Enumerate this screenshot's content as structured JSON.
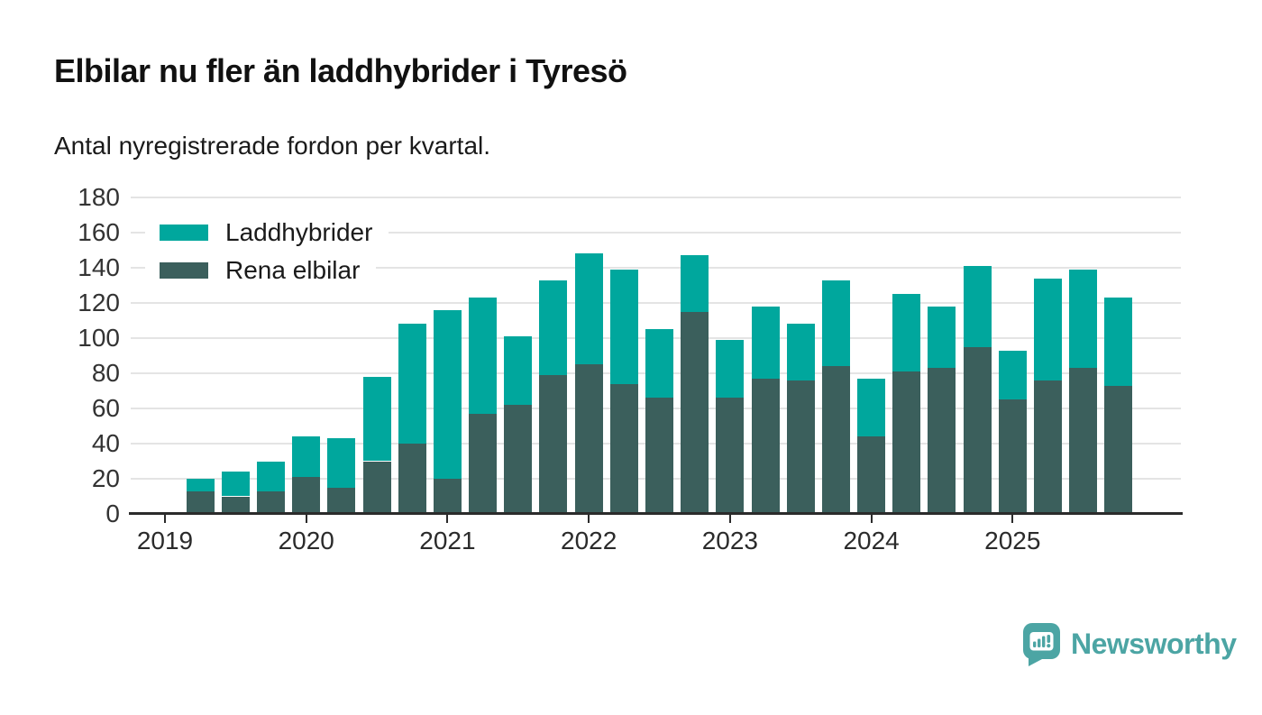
{
  "header": {
    "title": "Elbilar nu fler än laddhybrider i Tyresö",
    "subtitle": "Antal nyregistrerade fordon per kvartal."
  },
  "colors": {
    "laddhybrider": "#00a79d",
    "rena_elbilar": "#3b5f5c",
    "brand": "#4ca5a4",
    "axis": "#2b2b2b",
    "grid": "#e4e4e4",
    "title_text": "#111111"
  },
  "legend": {
    "items": [
      {
        "label": "Laddhybrider",
        "color": "#00a79d"
      },
      {
        "label": "Rena elbilar",
        "color": "#3b5f5c"
      }
    ]
  },
  "chart_data": {
    "type": "bar",
    "stacked": true,
    "title": "Elbilar nu fler än laddhybrider i Tyresö",
    "subtitle": "Antal nyregistrerade fordon per kvartal.",
    "x": [
      "2019 Q2",
      "2019 Q3",
      "2019 Q4",
      "2020 Q1",
      "2020 Q2",
      "2020 Q3",
      "2020 Q4",
      "2021 Q1",
      "2021 Q2",
      "2021 Q3",
      "2021 Q4",
      "2022 Q1",
      "2022 Q2",
      "2022 Q3",
      "2022 Q4",
      "2023 Q1",
      "2023 Q2",
      "2023 Q3",
      "2023 Q4",
      "2024 Q1",
      "2024 Q2",
      "2024 Q3",
      "2024 Q4",
      "2025 Q1",
      "2025 Q2",
      "2025 Q3",
      "2025 Q4"
    ],
    "series": [
      {
        "name": "Rena elbilar",
        "color": "#3b5f5c",
        "values": [
          13,
          10,
          13,
          21,
          15,
          30,
          40,
          20,
          57,
          62,
          79,
          85,
          74,
          66,
          115,
          66,
          77,
          76,
          84,
          44,
          81,
          83,
          95,
          65,
          76,
          83,
          73
        ]
      },
      {
        "name": "Laddhybrider",
        "color": "#00a79d",
        "values": [
          7,
          14,
          17,
          23,
          28,
          48,
          68,
          96,
          66,
          39,
          54,
          63,
          65,
          39,
          32,
          33,
          41,
          32,
          49,
          33,
          44,
          35,
          46,
          28,
          58,
          56,
          50
        ]
      }
    ],
    "totals": [
      20,
      24,
      30,
      44,
      43,
      78,
      108,
      116,
      123,
      101,
      133,
      148,
      139,
      105,
      147,
      99,
      118,
      108,
      133,
      77,
      125,
      118,
      141,
      93,
      134,
      139,
      123
    ],
    "ylim": [
      0,
      180
    ],
    "yticks": [
      0,
      20,
      40,
      60,
      80,
      100,
      120,
      140,
      160,
      180
    ],
    "year_ticks": [
      "2019",
      "2020",
      "2021",
      "2022",
      "2023",
      "2024",
      "2025"
    ],
    "grid": true,
    "legend_position": "top-left"
  },
  "footer": {
    "brand": "Newsworthy"
  }
}
